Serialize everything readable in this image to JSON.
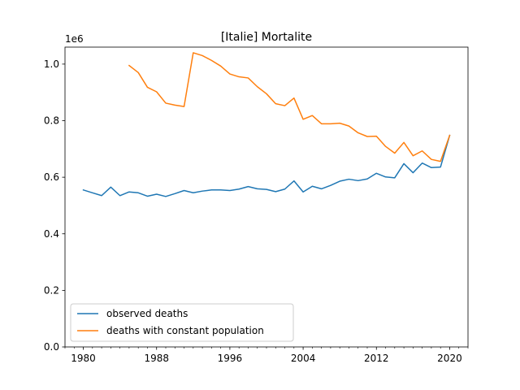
{
  "chart_data": {
    "type": "line",
    "title": "[Italie] Mortalite",
    "xlabel": "",
    "ylabel": "",
    "y_offset_label": "1e6",
    "xlim": [
      1978,
      2022
    ],
    "ylim": [
      0,
      1060000
    ],
    "x_ticks": [
      1980,
      1988,
      1996,
      2004,
      2012,
      2020
    ],
    "x_tick_labels": [
      "1980",
      "1988",
      "1996",
      "2004",
      "2012",
      "2020"
    ],
    "x_minor_step": 1,
    "y_ticks": [
      0,
      200000,
      400000,
      600000,
      800000,
      1000000
    ],
    "y_tick_labels": [
      "0.0",
      "0.2",
      "0.4",
      "0.6",
      "0.8",
      "1.0"
    ],
    "grid": false,
    "legend_position": "lower-left",
    "series": [
      {
        "name": "observed deaths",
        "color": "#1f77b4",
        "x": [
          1980,
          1981,
          1982,
          1983,
          1984,
          1985,
          1986,
          1987,
          1988,
          1989,
          1990,
          1991,
          1992,
          1993,
          1994,
          1995,
          1996,
          1997,
          1998,
          1999,
          2000,
          2001,
          2002,
          2003,
          2004,
          2005,
          2006,
          2007,
          2008,
          2009,
          2010,
          2011,
          2012,
          2013,
          2014,
          2015,
          2016,
          2017,
          2018,
          2019,
          2020
        ],
        "values": [
          555000,
          545000,
          535000,
          565000,
          535000,
          548000,
          545000,
          533000,
          540000,
          532000,
          542000,
          553000,
          545000,
          551000,
          555000,
          555000,
          553000,
          558000,
          567000,
          559000,
          557000,
          549000,
          558000,
          587000,
          548000,
          568000,
          559000,
          571000,
          586000,
          593000,
          588000,
          594000,
          614000,
          601000,
          598000,
          648000,
          616000,
          650000,
          634000,
          636000,
          748000
        ]
      },
      {
        "name": "deaths with constant population",
        "color": "#ff7f0e",
        "x": [
          1985,
          1986,
          1987,
          1988,
          1989,
          1990,
          1991,
          1992,
          1993,
          1994,
          1995,
          1996,
          1997,
          1998,
          1999,
          2000,
          2001,
          2002,
          2003,
          2004,
          2005,
          2006,
          2007,
          2008,
          2009,
          2010,
          2011,
          2012,
          2013,
          2014,
          2015,
          2016,
          2017,
          2018,
          2019,
          2020
        ],
        "values": [
          995000,
          970000,
          918000,
          902000,
          862000,
          855000,
          850000,
          1040000,
          1030000,
          1013000,
          993000,
          965000,
          955000,
          951000,
          920000,
          895000,
          860000,
          853000,
          880000,
          805000,
          818000,
          789000,
          789000,
          791000,
          781000,
          757000,
          744000,
          745000,
          709000,
          685000,
          723000,
          676000,
          693000,
          663000,
          656000,
          748000
        ]
      }
    ]
  }
}
